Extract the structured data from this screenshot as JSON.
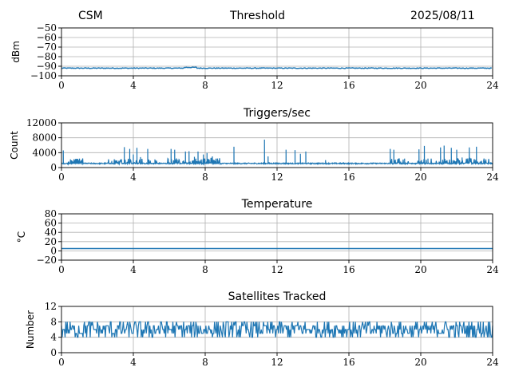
{
  "header": {
    "left": "CSM",
    "center": "Threshold",
    "right": "2025/08/11"
  },
  "colors": {
    "series": "#1f77b4",
    "grid": "#b0b0b0",
    "axis": "#000000"
  },
  "chart_data": [
    {
      "type": "line",
      "title": "",
      "ylabel": "dBm",
      "xlim": [
        0,
        24
      ],
      "ylim": [
        -100,
        -50
      ],
      "xticks": [
        0,
        4,
        8,
        12,
        16,
        20,
        24
      ],
      "yticks": [
        -100,
        -90,
        -80,
        -70,
        -60,
        -50
      ],
      "ytick_labels": [
        "−100",
        "−90",
        "−80",
        "−70",
        "−60",
        "−50"
      ],
      "grid": true,
      "series": [
        {
          "x": [
            0,
            2,
            4,
            6,
            7,
            7.3,
            8,
            10,
            12,
            14,
            16,
            18,
            20,
            22,
            24
          ],
          "y": [
            -92,
            -92,
            -92,
            -92,
            -91.5,
            -91,
            -91.5,
            -92,
            -92,
            -92,
            -92,
            -92,
            -92,
            -92,
            -92
          ]
        }
      ]
    },
    {
      "type": "line",
      "title": "Triggers/sec",
      "ylabel": "Count",
      "xlim": [
        0,
        24
      ],
      "ylim": [
        0,
        12000
      ],
      "xticks": [
        0,
        4,
        8,
        12,
        16,
        20,
        24
      ],
      "yticks": [
        0,
        4000,
        8000,
        12000
      ],
      "ytick_labels": [
        "0",
        "4000",
        "8000",
        "12000"
      ],
      "grid": true,
      "baseline": 1100,
      "spikes": [
        {
          "x": 0.1,
          "y": 4600
        },
        {
          "x": 0.5,
          "y": 2200
        },
        {
          "x": 0.9,
          "y": 2000
        },
        {
          "x": 2.8,
          "y": 1800
        },
        {
          "x": 3.5,
          "y": 5500
        },
        {
          "x": 3.8,
          "y": 5000
        },
        {
          "x": 4.0,
          "y": 3500
        },
        {
          "x": 4.2,
          "y": 5300
        },
        {
          "x": 4.4,
          "y": 2800
        },
        {
          "x": 4.8,
          "y": 5000
        },
        {
          "x": 5.2,
          "y": 2200
        },
        {
          "x": 6.1,
          "y": 5000
        },
        {
          "x": 6.3,
          "y": 4800
        },
        {
          "x": 6.9,
          "y": 4300
        },
        {
          "x": 7.1,
          "y": 4400
        },
        {
          "x": 7.4,
          "y": 2900
        },
        {
          "x": 7.6,
          "y": 4300
        },
        {
          "x": 7.9,
          "y": 3500
        },
        {
          "x": 8.1,
          "y": 3900
        },
        {
          "x": 8.4,
          "y": 3000
        },
        {
          "x": 8.6,
          "y": 2400
        },
        {
          "x": 9.6,
          "y": 5600
        },
        {
          "x": 11.3,
          "y": 7500
        },
        {
          "x": 11.5,
          "y": 3000
        },
        {
          "x": 12.5,
          "y": 4800
        },
        {
          "x": 13.0,
          "y": 4700
        },
        {
          "x": 13.3,
          "y": 3700
        },
        {
          "x": 13.6,
          "y": 4300
        },
        {
          "x": 14.7,
          "y": 2000
        },
        {
          "x": 18.3,
          "y": 5000
        },
        {
          "x": 18.5,
          "y": 4800
        },
        {
          "x": 19.1,
          "y": 2400
        },
        {
          "x": 19.9,
          "y": 4900
        },
        {
          "x": 20.2,
          "y": 5800
        },
        {
          "x": 20.4,
          "y": 2400
        },
        {
          "x": 21.1,
          "y": 5400
        },
        {
          "x": 21.3,
          "y": 5900
        },
        {
          "x": 21.7,
          "y": 5300
        },
        {
          "x": 22.0,
          "y": 4800
        },
        {
          "x": 22.3,
          "y": 2700
        },
        {
          "x": 22.7,
          "y": 5400
        },
        {
          "x": 23.1,
          "y": 5600
        },
        {
          "x": 23.5,
          "y": 2100
        }
      ],
      "noisy_ranges": [
        [
          0.4,
          1.2
        ],
        [
          2.6,
          5.4
        ],
        [
          5.9,
          8.9
        ],
        [
          18.2,
          19.4
        ],
        [
          19.8,
          23.8
        ]
      ]
    },
    {
      "type": "line",
      "title": "Temperature",
      "ylabel": "°C",
      "xlim": [
        0,
        24
      ],
      "ylim": [
        -20,
        80
      ],
      "xticks": [
        0,
        4,
        8,
        12,
        16,
        20,
        24
      ],
      "yticks": [
        -20,
        0,
        20,
        40,
        60,
        80
      ],
      "ytick_labels": [
        "−20",
        "0",
        "20",
        "40",
        "60",
        "80"
      ],
      "grid": true,
      "series": [
        {
          "x": [
            0,
            24
          ],
          "y": [
            5,
            5
          ]
        }
      ]
    },
    {
      "type": "line",
      "title": "Satellites Tracked",
      "ylabel": "Number",
      "xlim": [
        0,
        24
      ],
      "ylim": [
        0,
        12
      ],
      "xticks": [
        0,
        4,
        8,
        12,
        16,
        20,
        24
      ],
      "yticks": [
        0,
        4,
        8,
        12
      ],
      "ytick_labels": [
        "0",
        "4",
        "8",
        "12"
      ],
      "grid": true,
      "mean": 6,
      "min": 2,
      "max": 9
    }
  ]
}
